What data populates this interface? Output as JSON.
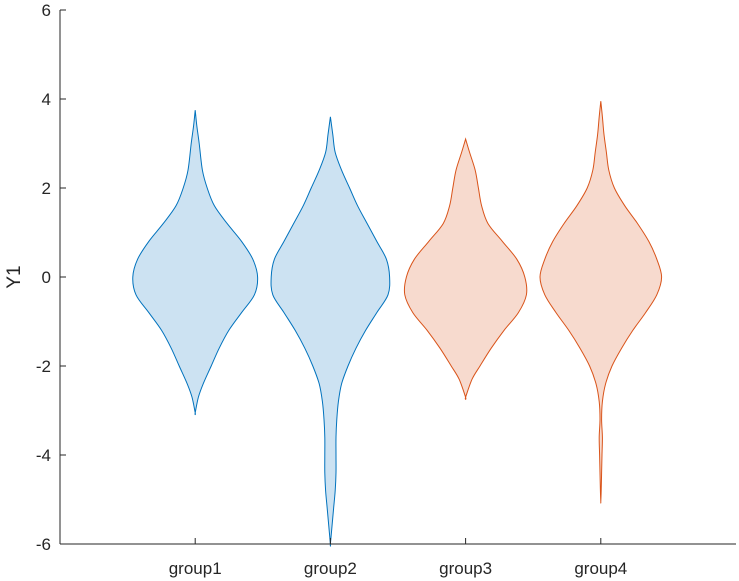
{
  "chart_data": {
    "type": "violin",
    "title": "",
    "xlabel": "",
    "ylabel": "Y1",
    "ylim": [
      -6,
      6
    ],
    "yticks": [
      -6,
      -4,
      -2,
      0,
      2,
      4,
      6
    ],
    "ytick_labels": [
      "-6",
      "-4",
      "-2",
      "0",
      "2",
      "4",
      "6"
    ],
    "categories": [
      "group1",
      "group2",
      "group3",
      "group4"
    ],
    "grid": false,
    "legend": "none",
    "series": [
      {
        "category": "group1",
        "color": "#0072BD",
        "fill": "#CCE2F2",
        "profile": [
          [
            3.75,
            0.0
          ],
          [
            3.4,
            0.02
          ],
          [
            3.0,
            0.05
          ],
          [
            2.4,
            0.09
          ],
          [
            2.0,
            0.15
          ],
          [
            1.6,
            0.24
          ],
          [
            1.2,
            0.4
          ],
          [
            0.8,
            0.58
          ],
          [
            0.4,
            0.72
          ],
          [
            0.0,
            0.78
          ],
          [
            -0.4,
            0.74
          ],
          [
            -0.8,
            0.58
          ],
          [
            -1.2,
            0.42
          ],
          [
            -1.6,
            0.3
          ],
          [
            -2.0,
            0.2
          ],
          [
            -2.4,
            0.1
          ],
          [
            -2.7,
            0.04
          ],
          [
            -3.05,
            0.0
          ]
        ]
      },
      {
        "category": "group2",
        "color": "#0072BD",
        "fill": "#CCE2F2",
        "profile": [
          [
            3.6,
            0.0
          ],
          [
            3.2,
            0.03
          ],
          [
            2.8,
            0.06
          ],
          [
            2.4,
            0.14
          ],
          [
            2.0,
            0.24
          ],
          [
            1.6,
            0.34
          ],
          [
            1.2,
            0.46
          ],
          [
            0.8,
            0.58
          ],
          [
            0.4,
            0.7
          ],
          [
            0.0,
            0.74
          ],
          [
            -0.4,
            0.72
          ],
          [
            -0.8,
            0.58
          ],
          [
            -1.2,
            0.44
          ],
          [
            -1.6,
            0.32
          ],
          [
            -2.0,
            0.22
          ],
          [
            -2.4,
            0.14
          ],
          [
            -2.8,
            0.1
          ],
          [
            -3.2,
            0.08
          ],
          [
            -3.6,
            0.07
          ],
          [
            -4.0,
            0.07
          ],
          [
            -4.4,
            0.07
          ],
          [
            -4.8,
            0.06
          ],
          [
            -5.2,
            0.04
          ],
          [
            -5.6,
            0.02
          ],
          [
            -6.0,
            0.0
          ]
        ]
      },
      {
        "category": "group3",
        "color": "#D95319",
        "fill": "#F7DACE",
        "profile": [
          [
            3.1,
            0.0
          ],
          [
            2.8,
            0.05
          ],
          [
            2.4,
            0.12
          ],
          [
            2.0,
            0.16
          ],
          [
            1.6,
            0.2
          ],
          [
            1.2,
            0.28
          ],
          [
            0.8,
            0.46
          ],
          [
            0.4,
            0.64
          ],
          [
            0.0,
            0.74
          ],
          [
            -0.4,
            0.76
          ],
          [
            -0.8,
            0.66
          ],
          [
            -1.2,
            0.48
          ],
          [
            -1.6,
            0.32
          ],
          [
            -2.0,
            0.18
          ],
          [
            -2.3,
            0.08
          ],
          [
            -2.7,
            0.0
          ]
        ]
      },
      {
        "category": "group4",
        "color": "#D95319",
        "fill": "#F7DACE",
        "profile": [
          [
            3.95,
            0.0
          ],
          [
            3.6,
            0.02
          ],
          [
            3.2,
            0.04
          ],
          [
            2.8,
            0.07
          ],
          [
            2.4,
            0.1
          ],
          [
            2.0,
            0.17
          ],
          [
            1.6,
            0.3
          ],
          [
            1.2,
            0.46
          ],
          [
            0.8,
            0.6
          ],
          [
            0.4,
            0.7
          ],
          [
            0.0,
            0.76
          ],
          [
            -0.4,
            0.7
          ],
          [
            -0.8,
            0.56
          ],
          [
            -1.2,
            0.4
          ],
          [
            -1.6,
            0.26
          ],
          [
            -2.0,
            0.14
          ],
          [
            -2.4,
            0.06
          ],
          [
            -2.8,
            0.02
          ],
          [
            -3.2,
            0.01
          ],
          [
            -3.6,
            0.02
          ],
          [
            -4.0,
            0.015
          ],
          [
            -4.4,
            0.01
          ],
          [
            -4.8,
            0.005
          ],
          [
            -5.05,
            0.0
          ]
        ]
      }
    ]
  }
}
